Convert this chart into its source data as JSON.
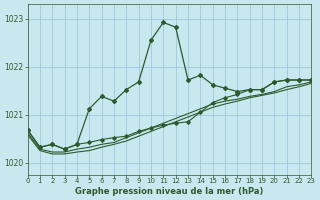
{
  "bg_color": "#c8e8f0",
  "grid_color": "#a0c8dc",
  "line_color": "#2d5a2d",
  "ylim": [
    1019.75,
    1023.3
  ],
  "xlim": [
    0,
    23
  ],
  "yticks": [
    1020,
    1021,
    1022,
    1023
  ],
  "xticks": [
    0,
    1,
    2,
    3,
    4,
    5,
    6,
    7,
    8,
    9,
    10,
    11,
    12,
    13,
    14,
    15,
    16,
    17,
    18,
    19,
    20,
    21,
    22,
    23
  ],
  "xlabel": "Graphe pression niveau de la mer (hPa)",
  "main_series": [
    1020.68,
    1020.32,
    1020.38,
    1020.28,
    1020.38,
    1021.12,
    1021.38,
    1021.28,
    1021.52,
    1021.68,
    1022.55,
    1022.92,
    1022.82,
    1021.72,
    1021.82,
    1021.62,
    1021.55,
    1021.48,
    1021.52,
    1021.52,
    1021.68,
    1021.72,
    1021.72,
    1021.72
  ],
  "second_series": [
    1020.68,
    1020.32,
    1020.38,
    1020.28,
    1020.38,
    1020.42,
    1020.48,
    1020.52,
    1020.55,
    1020.65,
    1020.72,
    1020.78,
    1020.82,
    1020.85,
    1021.05,
    1021.25,
    1021.35,
    1021.42,
    1021.52,
    1021.52,
    1021.68,
    1021.72,
    1021.72,
    1021.72
  ],
  "trend1_series": [
    1020.62,
    1020.28,
    1020.22,
    1020.22,
    1020.28,
    1020.32,
    1020.38,
    1020.42,
    1020.52,
    1020.62,
    1020.72,
    1020.82,
    1020.92,
    1021.02,
    1021.12,
    1021.22,
    1021.28,
    1021.32,
    1021.38,
    1021.42,
    1021.48,
    1021.58,
    1021.62,
    1021.68
  ],
  "trend2_series": [
    1020.58,
    1020.25,
    1020.18,
    1020.18,
    1020.22,
    1020.25,
    1020.32,
    1020.38,
    1020.45,
    1020.55,
    1020.65,
    1020.75,
    1020.85,
    1020.95,
    1021.05,
    1021.15,
    1021.22,
    1021.28,
    1021.35,
    1021.4,
    1021.45,
    1021.52,
    1021.58,
    1021.65
  ]
}
